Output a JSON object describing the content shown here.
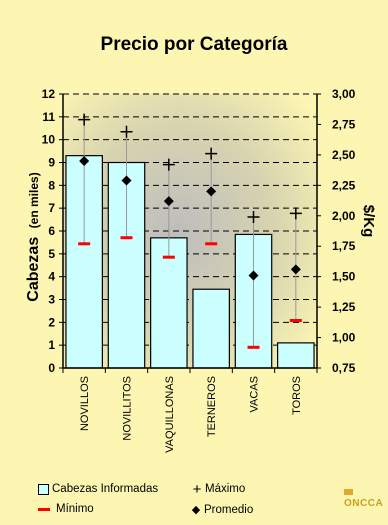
{
  "chart_data": {
    "type": "bar",
    "title": "Precio por Categoría",
    "categories": [
      "NOVILLOS",
      "NOVILLITOS",
      "VAQUILLONAS",
      "TERNEROS",
      "VACAS",
      "TOROS"
    ],
    "left_axis": {
      "label_main": "Cabezas",
      "label_sub": "(en miles)",
      "range": [
        0,
        12
      ],
      "ticks": [
        "0",
        "1",
        "2",
        "3",
        "4",
        "5",
        "6",
        "7",
        "8",
        "9",
        "10",
        "11",
        "12"
      ]
    },
    "right_axis": {
      "label": "$/Kg",
      "range": [
        0.75,
        3.0
      ],
      "ticks": [
        "0,75",
        "1,00",
        "1,25",
        "1,50",
        "1,75",
        "2,00",
        "2,25",
        "2,50",
        "2,75",
        "3,00"
      ]
    },
    "series": [
      {
        "name": "Cabezas Informadas",
        "axis": "left",
        "kind": "bar",
        "values": [
          9.3,
          9.0,
          5.7,
          3.45,
          5.85,
          1.1
        ]
      },
      {
        "name": "Máximo",
        "axis": "right",
        "kind": "marker",
        "values": [
          2.79,
          2.69,
          2.42,
          2.51,
          1.99,
          2.02
        ]
      },
      {
        "name": "Mínimo",
        "axis": "right",
        "kind": "marker",
        "values": [
          1.77,
          1.82,
          1.66,
          1.77,
          0.92,
          1.14
        ]
      },
      {
        "name": "Promedio",
        "axis": "right",
        "kind": "marker",
        "values": [
          2.45,
          2.29,
          2.12,
          2.2,
          1.51,
          1.56
        ]
      }
    ],
    "grid": true,
    "legend_position": "bottom",
    "colors": {
      "background": "#fdf6b3",
      "plot_center": "#bdbdbd",
      "bar_fill": "#ccffff",
      "min_marker": "#ff0000",
      "range_line": "#999999"
    }
  },
  "legend": {
    "bars": "Cabezas Informadas",
    "max": "Máximo",
    "min": "Mínimo",
    "avg": "Promedio"
  },
  "logo_text": "ONCCA"
}
